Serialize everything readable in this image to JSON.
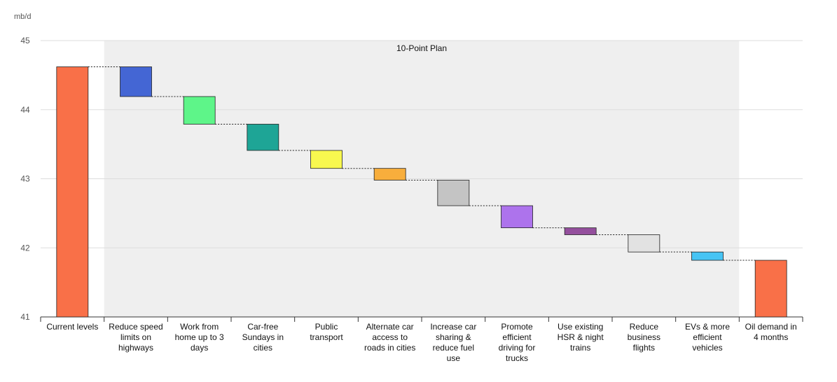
{
  "chart_data": {
    "type": "bar",
    "subtype": "waterfall",
    "ylabel": "mb/d",
    "ylim": [
      41,
      45
    ],
    "yticks": [
      41,
      42,
      43,
      44,
      45
    ],
    "grid": true,
    "band": {
      "label": "10-Point Plan",
      "from_category": 1,
      "to_category": 10,
      "color": "#efefef"
    },
    "categories": [
      [
        "Current levels"
      ],
      [
        "Reduce speed",
        "limits on",
        "highways"
      ],
      [
        "Work from",
        "home up to 3",
        "days"
      ],
      [
        "Car-free",
        "Sundays in",
        "cities"
      ],
      [
        "Public",
        "transport"
      ],
      [
        "Alternate car",
        "access to",
        "roads in cities"
      ],
      [
        "Increase car",
        "sharing &",
        "reduce fuel",
        "use"
      ],
      [
        "Promote",
        "efficient",
        "driving for",
        "trucks"
      ],
      [
        "Use existing",
        "HSR & night",
        "trains"
      ],
      [
        "Reduce",
        "business",
        "flights"
      ],
      [
        "EVs & more",
        "efficient",
        "vehicles"
      ],
      [
        "Oil demand in",
        "4 months"
      ]
    ],
    "bars": [
      {
        "start": 41.0,
        "end": 44.62,
        "kind": "total",
        "color": "#f97048"
      },
      {
        "start": 44.62,
        "end": 44.19,
        "kind": "delta",
        "color": "#4466d4"
      },
      {
        "start": 44.19,
        "end": 43.79,
        "kind": "delta",
        "color": "#5ef589"
      },
      {
        "start": 43.79,
        "end": 43.41,
        "kind": "delta",
        "color": "#1ea596"
      },
      {
        "start": 43.41,
        "end": 43.15,
        "kind": "delta",
        "color": "#f8f84f"
      },
      {
        "start": 43.15,
        "end": 42.98,
        "kind": "delta",
        "color": "#f8ae3c"
      },
      {
        "start": 42.98,
        "end": 42.61,
        "kind": "delta",
        "color": "#c4c4c4"
      },
      {
        "start": 42.61,
        "end": 42.29,
        "kind": "delta",
        "color": "#ad73ec"
      },
      {
        "start": 42.29,
        "end": 42.19,
        "kind": "delta",
        "color": "#944f9d"
      },
      {
        "start": 42.19,
        "end": 41.94,
        "kind": "delta",
        "color": "#e2e2e2"
      },
      {
        "start": 41.94,
        "end": 41.82,
        "kind": "delta",
        "color": "#47c4f4"
      },
      {
        "start": 41.0,
        "end": 41.82,
        "kind": "total",
        "color": "#f97048"
      }
    ]
  }
}
